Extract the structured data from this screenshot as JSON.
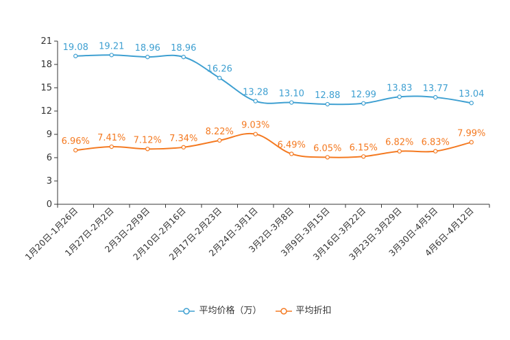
{
  "chart_data": {
    "type": "line",
    "title": "",
    "xlabel": "",
    "ylabel": "",
    "ylim": [
      0,
      21
    ],
    "yticks": [
      "0",
      "3",
      "6",
      "9",
      "12",
      "15",
      "18",
      "21"
    ],
    "categories": [
      "1月20日-1月26日",
      "1月27日-2月2日",
      "2月3日-2月9日",
      "2月10日-2月16日",
      "2月17日-2月23日",
      "2月24日-3月1日",
      "3月2日-3月8日",
      "3月9日-3月15日",
      "3月16日-3月22日",
      "3月23日-3月29日",
      "3月30日-4月5日",
      "4月6日-4月12日"
    ],
    "series": [
      {
        "name": "平均价格（万）",
        "color": "#3d9fd1",
        "values": [
          19.08,
          19.21,
          18.96,
          18.96,
          16.26,
          13.28,
          13.1,
          12.88,
          12.99,
          13.83,
          13.77,
          13.04
        ],
        "labels": [
          "19.08",
          "19.21",
          "18.96",
          "18.96",
          "16.26",
          "13.28",
          "13.10",
          "12.88",
          "12.99",
          "13.83",
          "13.77",
          "13.04"
        ]
      },
      {
        "name": "平均折扣",
        "color": "#f47920",
        "values": [
          6.96,
          7.41,
          7.12,
          7.34,
          8.22,
          9.03,
          6.49,
          6.05,
          6.15,
          6.82,
          6.83,
          7.99
        ],
        "labels": [
          "6.96%",
          "7.41%",
          "7.12%",
          "7.34%",
          "8.22%",
          "9.03%",
          "6.49%",
          "6.05%",
          "6.15%",
          "6.82%",
          "6.83%",
          "7.99%"
        ]
      }
    ],
    "legend": "bottom-center",
    "grid": false
  }
}
